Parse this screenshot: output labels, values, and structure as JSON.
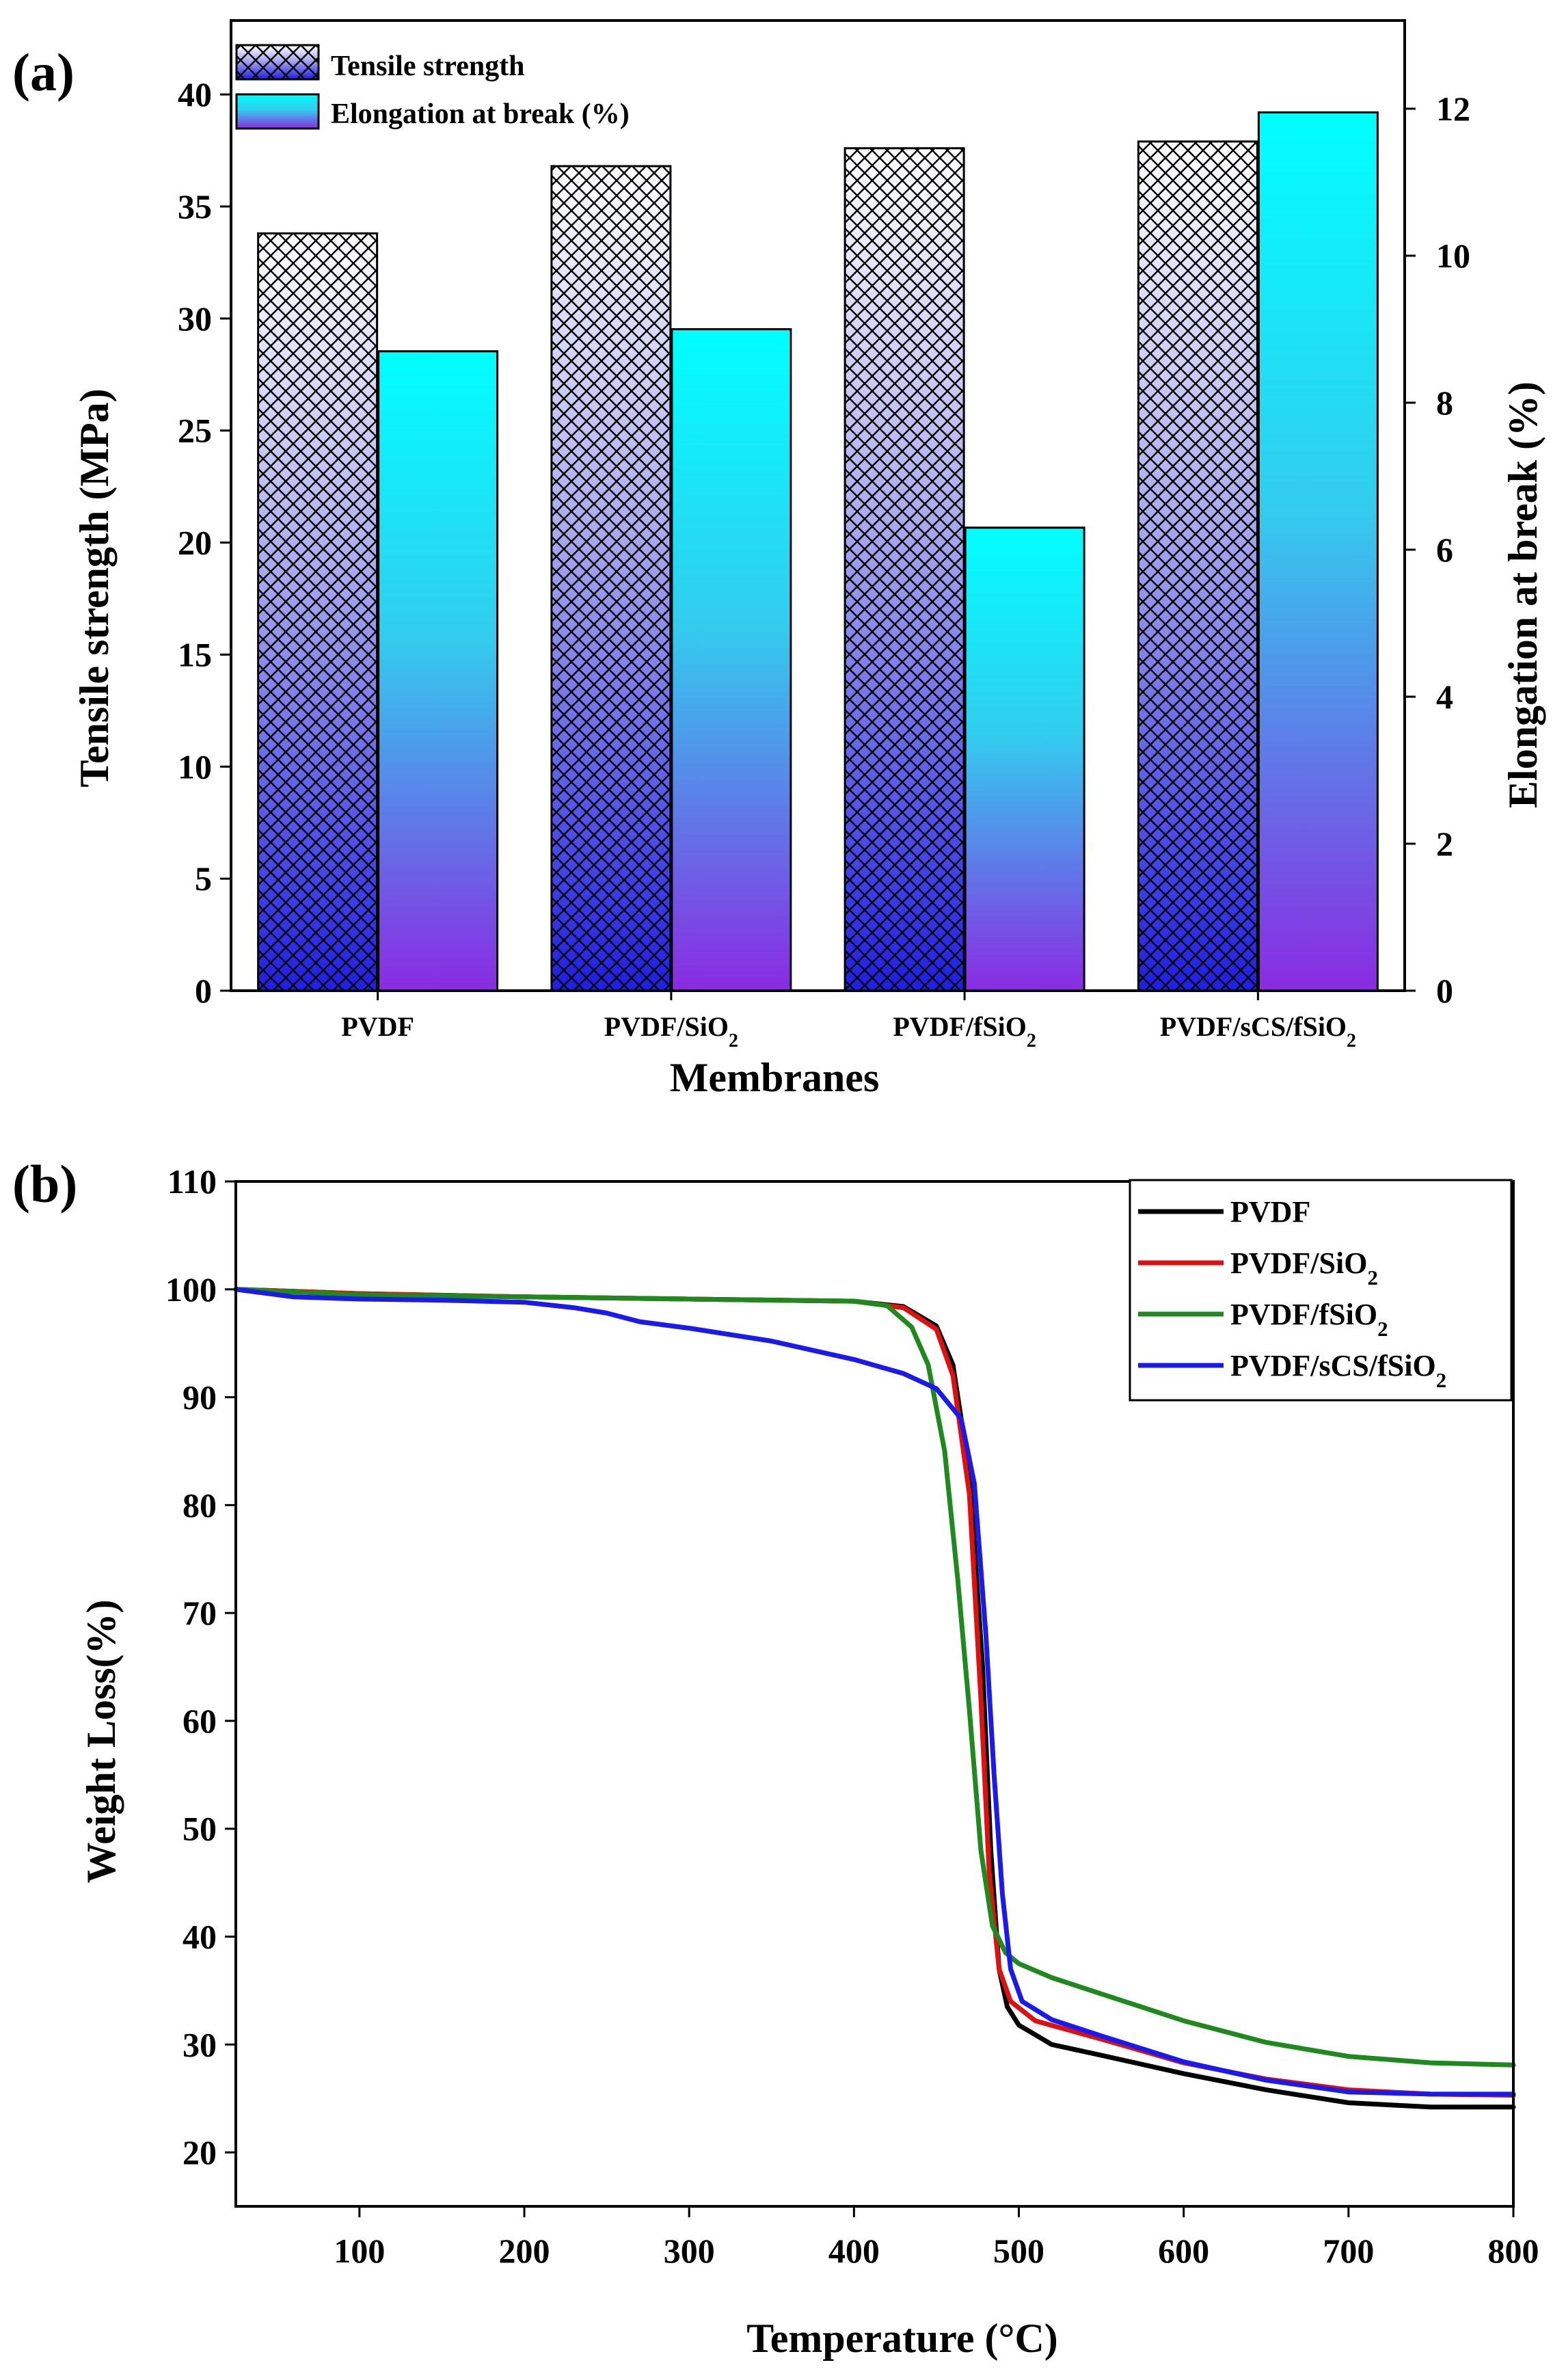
{
  "chart_data": [
    {
      "panel": "(a)",
      "type": "bar",
      "xlabel": "Membranes",
      "ylabel": "Tensile strength (MPa)",
      "y2label": "Elongation at break (%)",
      "categories": [
        {
          "name": "PVDF",
          "sub": ""
        },
        {
          "name": "PVDF/SiO",
          "sub": "2"
        },
        {
          "name": "PVDF/fSiO",
          "sub": "2"
        },
        {
          "name": "PVDF/sCS/fSiO",
          "sub": "2"
        }
      ],
      "ylim": [
        0,
        43.3
      ],
      "y2lim": [
        0,
        13.2
      ],
      "yticks": [
        "0",
        "5",
        "10",
        "15",
        "20",
        "25",
        "30",
        "35",
        "40"
      ],
      "y2ticks": [
        "0",
        "2",
        "4",
        "6",
        "8",
        "10",
        "12"
      ],
      "series": [
        {
          "name": "Tensile strength",
          "axis": "left",
          "values": [
            33.8,
            36.8,
            37.6,
            37.9
          ]
        },
        {
          "name": "Elongation at break (%)",
          "axis": "right",
          "values": [
            8.7,
            9.0,
            6.3,
            11.95
          ]
        }
      ],
      "legend": "top-left"
    },
    {
      "panel": "(b)",
      "type": "line",
      "xlabel": "Temperature (°C)",
      "ylabel": "Weight Loss(%)",
      "xlim": [
        25,
        800
      ],
      "ylim": [
        15,
        110
      ],
      "xticks": [
        "100",
        "200",
        "300",
        "400",
        "500",
        "600",
        "700",
        "800"
      ],
      "yticks": [
        "20",
        "30",
        "40",
        "50",
        "60",
        "70",
        "80",
        "90",
        "100",
        "110"
      ],
      "legend": "top-right",
      "series": [
        {
          "name": "PVDF",
          "sub": "",
          "color": "#000000",
          "points": [
            [
              25,
              100
            ],
            [
              100,
              99.6
            ],
            [
              200,
              99.3
            ],
            [
              300,
              99.1
            ],
            [
              400,
              98.9
            ],
            [
              430,
              98.4
            ],
            [
              450,
              96.6
            ],
            [
              460,
              93
            ],
            [
              470,
              83
            ],
            [
              478,
              65
            ],
            [
              483,
              48
            ],
            [
              488,
              37
            ],
            [
              493,
              33.5
            ],
            [
              500,
              31.8
            ],
            [
              520,
              30
            ],
            [
              550,
              29
            ],
            [
              600,
              27.3
            ],
            [
              650,
              25.8
            ],
            [
              700,
              24.6
            ],
            [
              750,
              24.2
            ],
            [
              800,
              24.2
            ]
          ]
        },
        {
          "name": "PVDF/SiO",
          "sub": "2",
          "color": "#e01010",
          "points": [
            [
              25,
              100
            ],
            [
              100,
              99.6
            ],
            [
              200,
              99.3
            ],
            [
              300,
              99.1
            ],
            [
              400,
              98.9
            ],
            [
              430,
              98.3
            ],
            [
              450,
              96.3
            ],
            [
              460,
              92
            ],
            [
              470,
              81
            ],
            [
              477,
              62
            ],
            [
              482,
              46
            ],
            [
              488,
              37
            ],
            [
              495,
              34
            ],
            [
              510,
              32.2
            ],
            [
              550,
              30.5
            ],
            [
              600,
              28.3
            ],
            [
              650,
              26.8
            ],
            [
              700,
              25.8
            ],
            [
              750,
              25.4
            ],
            [
              800,
              25.3
            ]
          ]
        },
        {
          "name": "PVDF/fSiO",
          "sub": "2",
          "color": "#1e8a1e",
          "points": [
            [
              25,
              100
            ],
            [
              100,
              99.5
            ],
            [
              200,
              99.3
            ],
            [
              300,
              99.1
            ],
            [
              400,
              98.9
            ],
            [
              420,
              98.5
            ],
            [
              435,
              96.5
            ],
            [
              445,
              93
            ],
            [
              455,
              85
            ],
            [
              463,
              73
            ],
            [
              470,
              61
            ],
            [
              477,
              48
            ],
            [
              484,
              41
            ],
            [
              492,
              38.5
            ],
            [
              500,
              37.5
            ],
            [
              520,
              36.2
            ],
            [
              550,
              34.7
            ],
            [
              600,
              32.2
            ],
            [
              650,
              30.2
            ],
            [
              700,
              28.9
            ],
            [
              750,
              28.3
            ],
            [
              800,
              28.1
            ]
          ]
        },
        {
          "name": "PVDF/sCS/fSiO",
          "sub": "2",
          "color": "#1a1aee",
          "points": [
            [
              25,
              100
            ],
            [
              60,
              99.3
            ],
            [
              100,
              99.1
            ],
            [
              150,
              99
            ],
            [
              200,
              98.8
            ],
            [
              230,
              98.3
            ],
            [
              250,
              97.8
            ],
            [
              270,
              97
            ],
            [
              300,
              96.4
            ],
            [
              350,
              95.2
            ],
            [
              400,
              93.5
            ],
            [
              430,
              92.2
            ],
            [
              450,
              90.8
            ],
            [
              465,
              88
            ],
            [
              473,
              82
            ],
            [
              480,
              68
            ],
            [
              485,
              55
            ],
            [
              490,
              44
            ],
            [
              495,
              37
            ],
            [
              502,
              34
            ],
            [
              520,
              32.3
            ],
            [
              550,
              30.8
            ],
            [
              600,
              28.4
            ],
            [
              650,
              26.7
            ],
            [
              700,
              25.6
            ],
            [
              750,
              25.4
            ],
            [
              800,
              25.4
            ]
          ]
        }
      ]
    }
  ]
}
